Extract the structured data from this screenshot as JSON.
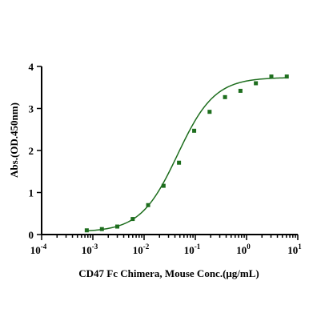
{
  "chart_data": {
    "type": "scatter",
    "title": "",
    "xlabel": "CD47 Fc Chimera, Mouse Conc.(μg/mL)",
    "ylabel": "Abs.(OD.450nm)",
    "xscale": "log",
    "xlim": [
      0.0001,
      10
    ],
    "ylim": [
      0,
      4
    ],
    "x_ticks": [
      {
        "value": 0.0001,
        "base": "10",
        "exp": "-4"
      },
      {
        "value": 0.001,
        "base": "10",
        "exp": "-3"
      },
      {
        "value": 0.01,
        "base": "10",
        "exp": "-2"
      },
      {
        "value": 0.1,
        "base": "10",
        "exp": "-1"
      },
      {
        "value": 1,
        "base": "10",
        "exp": "0"
      },
      {
        "value": 10,
        "base": "10",
        "exp": "1"
      }
    ],
    "y_ticks": [
      0,
      1,
      2,
      3,
      4
    ],
    "grid": false,
    "legend": "none",
    "series": [
      {
        "color": "#1e6e1e",
        "marker": "square",
        "x": [
          0.00076,
          0.0015,
          0.003,
          0.006,
          0.012,
          0.024,
          0.048,
          0.095,
          0.19,
          0.38,
          0.76,
          1.52,
          3.05,
          6.1
        ],
        "y": [
          0.1,
          0.13,
          0.19,
          0.37,
          0.7,
          1.16,
          1.71,
          2.47,
          2.92,
          3.27,
          3.42,
          3.6,
          3.76,
          3.76
        ]
      }
    ],
    "fit_curve": {
      "model": "4PL",
      "bottom": 0.06,
      "top": 3.74,
      "ec50": 0.045,
      "hill": 1.2,
      "color": "#1e6e1e"
    }
  }
}
